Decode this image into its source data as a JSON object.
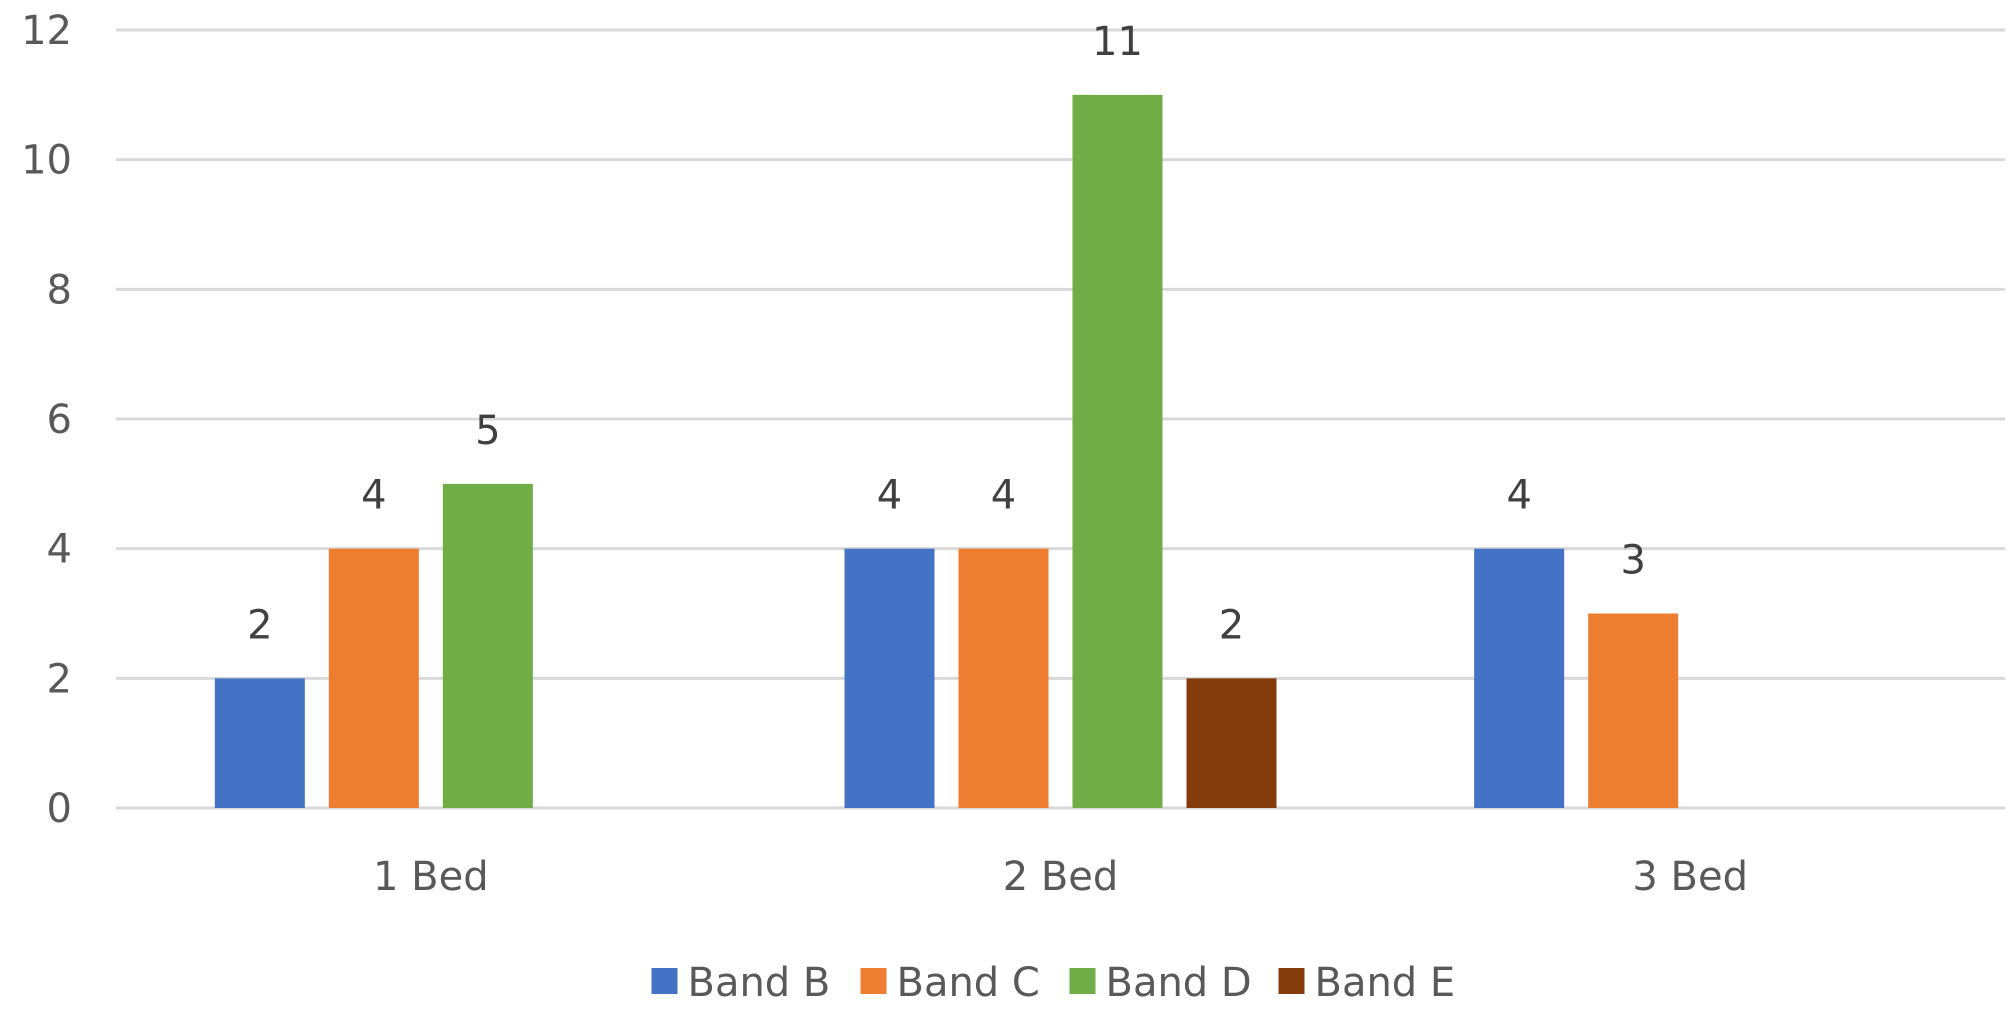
{
  "chart_data": {
    "type": "bar",
    "title": "",
    "xlabel": "",
    "ylabel": "",
    "categories": [
      "1 Bed",
      "2 Bed",
      "3 Bed"
    ],
    "series": [
      {
        "name": "Band B",
        "color": "#4472c4",
        "values": [
          2,
          4,
          4
        ]
      },
      {
        "name": "Band C",
        "color": "#ed7d31",
        "values": [
          4,
          4,
          3
        ]
      },
      {
        "name": "Band D",
        "color": "#70ad47",
        "values": [
          5,
          11,
          null
        ]
      },
      {
        "name": "Band E",
        "color": "#843c0c",
        "values": [
          null,
          2,
          null
        ]
      }
    ],
    "ylim": [
      0,
      12
    ],
    "yticks": [
      0,
      2,
      4,
      6,
      8,
      10,
      12
    ],
    "grid": true,
    "legend_position": "bottom",
    "data_labels": true
  }
}
